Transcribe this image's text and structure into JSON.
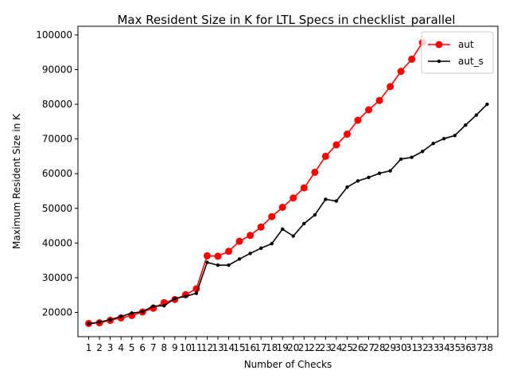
{
  "chart_data": {
    "type": "line",
    "title": "Max Resident Size in K for LTL Specs in checklist_parallel",
    "xlabel": "Number of Checks",
    "ylabel": "Maximum Resident Size in K",
    "x": [
      1,
      2,
      3,
      4,
      5,
      6,
      7,
      8,
      9,
      10,
      11,
      12,
      13,
      14,
      15,
      16,
      17,
      18,
      19,
      20,
      21,
      22,
      23,
      24,
      25,
      26,
      27,
      28,
      29,
      30,
      31,
      32,
      33,
      34,
      35,
      36,
      37,
      38
    ],
    "xlim": [
      0,
      39
    ],
    "ylim": [
      13000,
      102500
    ],
    "yticks": [
      20000,
      30000,
      40000,
      50000,
      60000,
      70000,
      80000,
      90000,
      100000
    ],
    "grid": false,
    "legend_position": "top-right",
    "series": [
      {
        "name": "aut",
        "color": "#ff0000",
        "marker": "circle-large",
        "x": [
          1,
          2,
          3,
          4,
          5,
          6,
          7,
          8,
          9,
          10,
          11,
          12,
          13,
          14,
          15,
          16,
          17,
          18,
          19,
          20,
          21,
          22,
          23,
          24,
          25,
          26,
          27,
          28,
          29,
          30,
          31,
          32
        ],
        "values": [
          16800,
          17000,
          17700,
          18400,
          19100,
          20100,
          21200,
          22800,
          23700,
          25100,
          26800,
          36300,
          36200,
          37600,
          40500,
          42200,
          44600,
          47600,
          50300,
          53000,
          55900,
          60400,
          65000,
          68300,
          71400,
          75400,
          78400,
          81100,
          85100,
          89500,
          93000,
          97800
        ]
      },
      {
        "name": "aut_s",
        "color": "#000000",
        "marker": "circle-small",
        "x": [
          1,
          2,
          3,
          4,
          5,
          6,
          7,
          8,
          9,
          10,
          11,
          12,
          13,
          14,
          15,
          16,
          17,
          18,
          19,
          20,
          21,
          22,
          23,
          24,
          25,
          26,
          27,
          28,
          29,
          30,
          31,
          32,
          33,
          34,
          35,
          36,
          37,
          38
        ],
        "values": [
          16700,
          17200,
          17900,
          18800,
          19800,
          20200,
          21800,
          21900,
          24000,
          24600,
          25500,
          34400,
          33600,
          33600,
          35400,
          37000,
          38500,
          39800,
          44000,
          42000,
          45600,
          48100,
          52600,
          52100,
          56100,
          57900,
          58900,
          60100,
          60800,
          64200,
          64700,
          66400,
          68700,
          70100,
          71000,
          74000,
          76900,
          80000
        ]
      }
    ]
  }
}
